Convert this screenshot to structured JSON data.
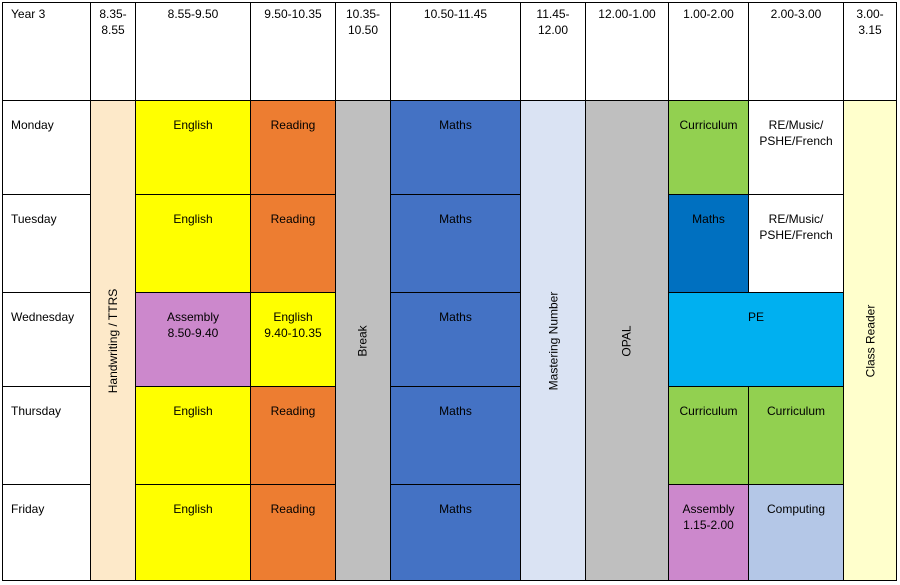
{
  "header": {
    "year": "Year 3",
    "times": [
      "8.35-\n8.55",
      "8.55-9.50",
      "9.50-10.35",
      "10.35-\n10.50",
      "10.50-11.45",
      "11.45-\n12.00",
      "12.00-1.00",
      "1.00-2.00",
      "2.00-3.00",
      "3.00-\n3.15"
    ]
  },
  "days": [
    "Monday",
    "Tuesday",
    "Wednesday",
    "Thursday",
    "Friday"
  ],
  "spanning": {
    "handwriting": "Handwriting / TTRS",
    "break": "Break",
    "mastering": "Mastering Number",
    "opal": "OPAL",
    "class_reader": "Class Reader"
  },
  "lessons": {
    "monday": {
      "english": "English",
      "reading": "Reading",
      "maths": "Maths",
      "curriculum": "Curriculum",
      "afternoon": "RE/Music/\nPSHE/French"
    },
    "tuesday": {
      "english": "English",
      "reading": "Reading",
      "maths": "Maths",
      "maths_pm": "Maths",
      "afternoon": "RE/Music/\nPSHE/French"
    },
    "wednesday": {
      "assembly": "Assembly\n8.50-9.40",
      "english": "English\n9.40-10.35",
      "maths": "Maths",
      "pe": "PE"
    },
    "thursday": {
      "english": "English",
      "reading": "Reading",
      "maths": "Maths",
      "curriculum1": "Curriculum",
      "curriculum2": "Curriculum"
    },
    "friday": {
      "english": "English",
      "reading": "Reading",
      "maths": "Maths",
      "assembly": "Assembly\n1.15-2.00",
      "computing": "Computing"
    }
  },
  "colors": {
    "english": "#ffff00",
    "reading": "#ed7d31",
    "maths": "#4472c4",
    "maths_dark": "#0070c0",
    "break": "#bfbfbf",
    "opal": "#bfbfbf",
    "mastering": "#dae3f3",
    "handwriting": "#fde9c9",
    "curriculum": "#92d050",
    "assembly": "#cc88cc",
    "pe": "#00b0f0",
    "computing": "#b4c7e7",
    "class_reader": "#ffffcc",
    "white": "#ffffff"
  }
}
